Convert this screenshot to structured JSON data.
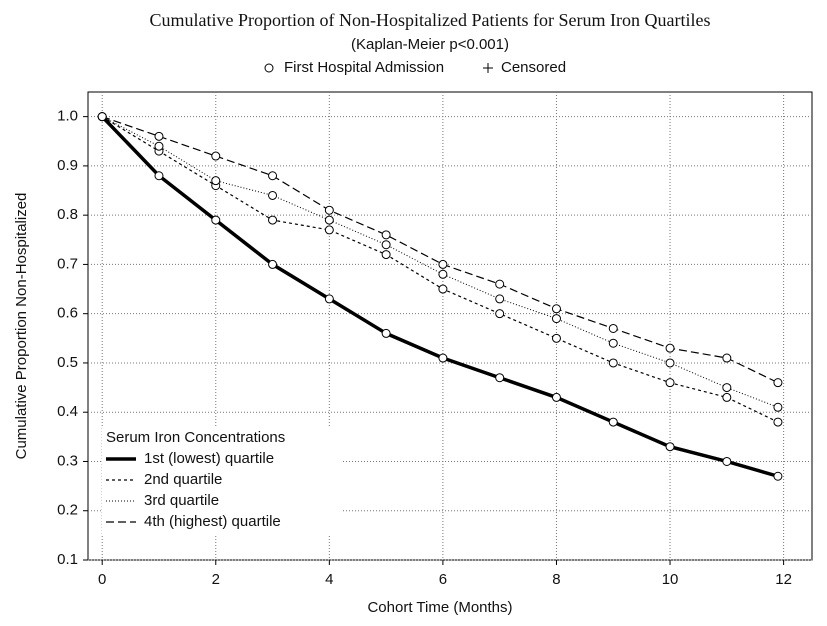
{
  "chart_data": {
    "type": "line",
    "title": "Cumulative Proportion of Non-Hospitalized Patients for Serum Iron Quartiles",
    "subtitle": "(Kaplan-Meier p<0.001)",
    "marker_legend": [
      "First Hospital Admission",
      "Censored"
    ],
    "x_label": "Cohort Time (Months)",
    "y_label": "Cumulative Proportion Non-Hospitalized",
    "legend_title": "Serum Iron Concentrations",
    "legend_position": "lower left",
    "grid": true,
    "x": [
      0,
      1,
      2,
      3,
      4,
      5,
      6,
      7,
      8,
      9,
      10,
      11,
      11.9
    ],
    "xlim": [
      -0.25,
      12.5
    ],
    "xticks": [
      0,
      2,
      4,
      6,
      8,
      10,
      12
    ],
    "ylim": [
      0.1,
      1.05
    ],
    "yticks": [
      0.1,
      0.2,
      0.3,
      0.4,
      0.5,
      0.6,
      0.7,
      0.8,
      0.9,
      {
        "value": 1,
        "label": "1.0"
      }
    ],
    "series": [
      {
        "name": "1st (lowest) quartile",
        "color": "#000000",
        "values": [
          1,
          0.88,
          0.79,
          0.7,
          0.63,
          0.56,
          0.51,
          0.47,
          0.43,
          0.38,
          0.33,
          0.3,
          0.27
        ]
      },
      {
        "name": "2nd quartile",
        "color": "#000000",
        "values": [
          1,
          0.93,
          0.86,
          0.79,
          0.77,
          0.72,
          0.65,
          0.6,
          0.55,
          0.5,
          0.46,
          0.43,
          0.38
        ]
      },
      {
        "name": "3rd quartile",
        "color": "#000000",
        "values": [
          1,
          0.94,
          0.87,
          0.84,
          0.79,
          0.74,
          0.68,
          0.63,
          0.59,
          0.54,
          0.5,
          0.45,
          0.41
        ]
      },
      {
        "name": "4th (highest) quartile",
        "color": "#000000",
        "values": [
          1,
          0.96,
          0.92,
          0.88,
          0.81,
          0.76,
          0.7,
          0.66,
          0.61,
          0.57,
          0.53,
          0.51,
          0.46
        ]
      }
    ]
  }
}
